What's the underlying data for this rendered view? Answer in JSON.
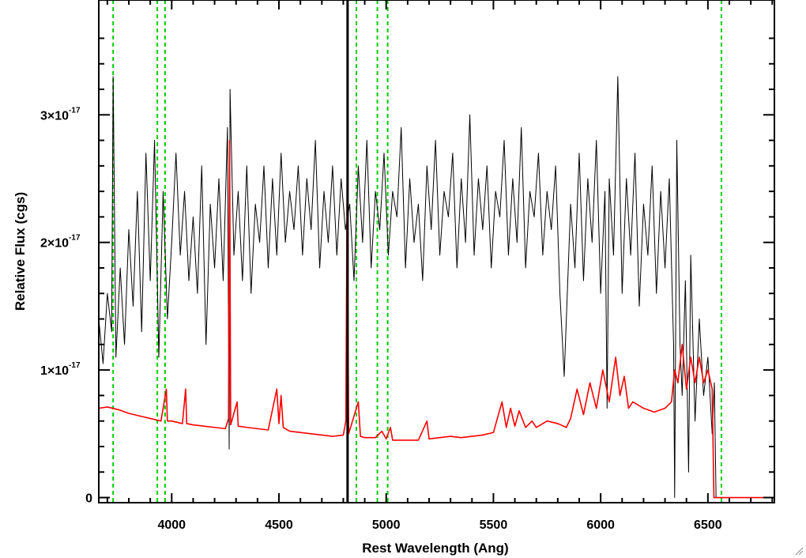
{
  "chart_data": {
    "type": "line",
    "xlabel": "Rest Wavelength (Ang)",
    "ylabel": "Relative Flux (cgs)",
    "xlim": [
      3660,
      6810
    ],
    "ylim": [
      -4e-19,
      3.9e-17
    ],
    "x_ticks": [
      {
        "value": 4000,
        "label": "4000"
      },
      {
        "value": 4500,
        "label": "4500"
      },
      {
        "value": 5000,
        "label": "5000"
      },
      {
        "value": 5500,
        "label": "5500"
      },
      {
        "value": 6000,
        "label": "6000"
      },
      {
        "value": 6500,
        "label": "6500"
      }
    ],
    "y_ticks": [
      {
        "value": 0,
        "label": "0",
        "mantissa": "",
        "exponent": ""
      },
      {
        "value": 1e-17,
        "label": "1×10",
        "mantissa": "1×10",
        "exponent": "-17"
      },
      {
        "value": 2e-17,
        "label": "2×10",
        "mantissa": "2×10",
        "exponent": "-17"
      },
      {
        "value": 3e-17,
        "label": "3×10",
        "mantissa": "3×10",
        "exponent": "-17"
      }
    ],
    "colors": {
      "spectrum": "#000000",
      "error": "#ff0000",
      "lines": "#00cc00",
      "marker": "#000000"
    },
    "vertical_lines_green": [
      3727,
      3933,
      3969,
      4861,
      4959,
      5007,
      6563
    ],
    "vertical_line_black": 4820,
    "series": [
      {
        "key": "spectrum",
        "points": [
          [
            3660,
            1.4e-17
          ],
          [
            3680,
            1.05e-17
          ],
          [
            3700,
            1.6e-17
          ],
          [
            3720,
            1.3e-17
          ],
          [
            3727,
            3.3e-17
          ],
          [
            3740,
            1.1e-17
          ],
          [
            3760,
            1.8e-17
          ],
          [
            3780,
            1.2e-17
          ],
          [
            3800,
            2.1e-17
          ],
          [
            3820,
            1.5e-17
          ],
          [
            3840,
            2.4e-17
          ],
          [
            3860,
            1.3e-17
          ],
          [
            3880,
            2.7e-17
          ],
          [
            3900,
            1.7e-17
          ],
          [
            3920,
            2.8e-17
          ],
          [
            3940,
            1.1e-17
          ],
          [
            3960,
            2.4e-17
          ],
          [
            3980,
            1.4e-17
          ],
          [
            4000,
            2e-17
          ],
          [
            4020,
            2.7e-17
          ],
          [
            4040,
            1.9e-17
          ],
          [
            4060,
            2.4e-17
          ],
          [
            4080,
            1.7e-17
          ],
          [
            4100,
            2.2e-17
          ],
          [
            4120,
            1.6e-17
          ],
          [
            4140,
            2.6e-17
          ],
          [
            4160,
            1.2e-17
          ],
          [
            4180,
            2.3e-17
          ],
          [
            4200,
            1.8e-17
          ],
          [
            4220,
            2.5e-17
          ],
          [
            4240,
            1.7e-17
          ],
          [
            4260,
            2.9e-17
          ],
          [
            4268,
            3.8e-18
          ],
          [
            4272,
            3.2e-17
          ],
          [
            4290,
            1.9e-17
          ],
          [
            4310,
            2.4e-17
          ],
          [
            4330,
            1.7e-17
          ],
          [
            4350,
            2.6e-17
          ],
          [
            4370,
            1.6e-17
          ],
          [
            4390,
            2.3e-17
          ],
          [
            4410,
            2e-17
          ],
          [
            4430,
            2.6e-17
          ],
          [
            4450,
            1.8e-17
          ],
          [
            4470,
            2.5e-17
          ],
          [
            4490,
            1.9e-17
          ],
          [
            4510,
            2.7e-17
          ],
          [
            4530,
            2e-17
          ],
          [
            4550,
            2.4e-17
          ],
          [
            4570,
            2.1e-17
          ],
          [
            4590,
            2.6e-17
          ],
          [
            4610,
            1.9e-17
          ],
          [
            4630,
            2.5e-17
          ],
          [
            4650,
            2.1e-17
          ],
          [
            4670,
            2.8e-17
          ],
          [
            4690,
            1.8e-17
          ],
          [
            4710,
            2.4e-17
          ],
          [
            4730,
            2e-17
          ],
          [
            4750,
            2.6e-17
          ],
          [
            4770,
            1.9e-17
          ],
          [
            4790,
            2.5e-17
          ],
          [
            4810,
            2.1e-17
          ],
          [
            4830,
            2.3e-17
          ],
          [
            4850,
            1.7e-17
          ],
          [
            4870,
            2.6e-17
          ],
          [
            4890,
            2e-17
          ],
          [
            4910,
            2.8e-17
          ],
          [
            4930,
            1.8e-17
          ],
          [
            4950,
            2.4e-17
          ],
          [
            4970,
            2.1e-17
          ],
          [
            4990,
            2.7e-17
          ],
          [
            5010,
            1.9e-17
          ],
          [
            5030,
            2.4e-17
          ],
          [
            5050,
            2.2e-17
          ],
          [
            5070,
            2.9e-17
          ],
          [
            5090,
            1.8e-17
          ],
          [
            5110,
            2.5e-17
          ],
          [
            5130,
            2e-17
          ],
          [
            5150,
            2.3e-17
          ],
          [
            5170,
            1.7e-17
          ],
          [
            5190,
            2.6e-17
          ],
          [
            5210,
            2.1e-17
          ],
          [
            5230,
            2.8e-17
          ],
          [
            5250,
            1.9e-17
          ],
          [
            5270,
            2.4e-17
          ],
          [
            5290,
            2.2e-17
          ],
          [
            5310,
            2.7e-17
          ],
          [
            5330,
            1.8e-17
          ],
          [
            5350,
            2.5e-17
          ],
          [
            5370,
            2e-17
          ],
          [
            5390,
            3e-17
          ],
          [
            5410,
            1.9e-17
          ],
          [
            5430,
            2.5e-17
          ],
          [
            5450,
            2.1e-17
          ],
          [
            5470,
            2.6e-17
          ],
          [
            5490,
            1.8e-17
          ],
          [
            5510,
            2.4e-17
          ],
          [
            5530,
            2.2e-17
          ],
          [
            5550,
            2.8e-17
          ],
          [
            5570,
            1.9e-17
          ],
          [
            5590,
            2.5e-17
          ],
          [
            5610,
            2e-17
          ],
          [
            5630,
            2.9e-17
          ],
          [
            5650,
            1.8e-17
          ],
          [
            5670,
            2.4e-17
          ],
          [
            5690,
            2.2e-17
          ],
          [
            5710,
            2.7e-17
          ],
          [
            5730,
            1.9e-17
          ],
          [
            5750,
            2.4e-17
          ],
          [
            5770,
            2.1e-17
          ],
          [
            5790,
            2.6e-17
          ],
          [
            5810,
            1.6e-17
          ],
          [
            5830,
            9.5e-18
          ],
          [
            5840,
            1.4e-17
          ],
          [
            5860,
            2.3e-17
          ],
          [
            5880,
            1.8e-17
          ],
          [
            5900,
            2.7e-17
          ],
          [
            5920,
            1.7e-17
          ],
          [
            5940,
            2.5e-17
          ],
          [
            5960,
            2e-17
          ],
          [
            5980,
            2.8e-17
          ],
          [
            6000,
            1.6e-17
          ],
          [
            6020,
            2.4e-17
          ],
          [
            6030,
            7e-18
          ],
          [
            6040,
            2.5e-17
          ],
          [
            6060,
            1.9e-17
          ],
          [
            6080,
            3.3e-17
          ],
          [
            6100,
            1.6e-17
          ],
          [
            6120,
            2.5e-17
          ],
          [
            6140,
            1.9e-17
          ],
          [
            6160,
            2.7e-17
          ],
          [
            6180,
            1.5e-17
          ],
          [
            6200,
            2.3e-17
          ],
          [
            6220,
            1.9e-17
          ],
          [
            6240,
            2.6e-17
          ],
          [
            6260,
            1.6e-17
          ],
          [
            6280,
            2.4e-17
          ],
          [
            6300,
            1.8e-17
          ],
          [
            6320,
            2.5e-17
          ],
          [
            6340,
            1.2e-17
          ],
          [
            6345,
            0.0
          ],
          [
            6355,
            2.8e-17
          ],
          [
            6370,
            1.2e-17
          ],
          [
            6380,
            8e-18
          ],
          [
            6395,
            1.7e-17
          ],
          [
            6410,
            2e-18
          ],
          [
            6420,
            1.9e-17
          ],
          [
            6440,
            6e-18
          ],
          [
            6460,
            1.4e-17
          ],
          [
            6480,
            8e-18
          ],
          [
            6500,
            1.1e-17
          ],
          [
            6520,
            5e-18
          ],
          [
            6530,
            9e-18
          ],
          [
            6538,
            0.0
          ]
        ]
      },
      {
        "key": "error",
        "points": [
          [
            3660,
            7e-18
          ],
          [
            3700,
            7.1e-18
          ],
          [
            3750,
            6.9e-18
          ],
          [
            3800,
            6.6e-18
          ],
          [
            3850,
            6.4e-18
          ],
          [
            3900,
            6.2e-18
          ],
          [
            3950,
            6e-18
          ],
          [
            3975,
            8.5e-18
          ],
          [
            3980,
            6e-18
          ],
          [
            4000,
            6e-18
          ],
          [
            4050,
            5.8e-18
          ],
          [
            4065,
            8.5e-18
          ],
          [
            4070,
            5.8e-18
          ],
          [
            4100,
            5.7e-18
          ],
          [
            4150,
            5.6e-18
          ],
          [
            4200,
            5.5e-18
          ],
          [
            4250,
            5.4e-18
          ],
          [
            4265,
            6.2e-18
          ],
          [
            4270,
            2.8e-17
          ],
          [
            4275,
            5.7e-18
          ],
          [
            4305,
            7.5e-18
          ],
          [
            4310,
            5.6e-18
          ],
          [
            4350,
            5.5e-18
          ],
          [
            4400,
            5.4e-18
          ],
          [
            4450,
            5.3e-18
          ],
          [
            4490,
            8.5e-18
          ],
          [
            4500,
            5.8e-18
          ],
          [
            4510,
            8e-18
          ],
          [
            4520,
            5.5e-18
          ],
          [
            4550,
            5.2e-18
          ],
          [
            4600,
            5.1e-18
          ],
          [
            4650,
            5e-18
          ],
          [
            4700,
            4.9e-18
          ],
          [
            4750,
            4.8e-18
          ],
          [
            4800,
            4.9e-18
          ],
          [
            4812,
            6e-18
          ],
          [
            4818,
            2.5e-17
          ],
          [
            4825,
            5e-18
          ],
          [
            4870,
            7.5e-18
          ],
          [
            4880,
            4.8e-18
          ],
          [
            4900,
            4.7e-18
          ],
          [
            4950,
            4.7e-18
          ],
          [
            4980,
            5.2e-18
          ],
          [
            5000,
            4.6e-18
          ],
          [
            5020,
            5.5e-18
          ],
          [
            5030,
            4.5e-18
          ],
          [
            5100,
            4.5e-18
          ],
          [
            5150,
            4.5e-18
          ],
          [
            5190,
            6e-18
          ],
          [
            5200,
            4.6e-18
          ],
          [
            5250,
            4.7e-18
          ],
          [
            5300,
            4.8e-18
          ],
          [
            5350,
            4.7e-18
          ],
          [
            5400,
            4.8e-18
          ],
          [
            5450,
            4.9e-18
          ],
          [
            5500,
            5.1e-18
          ],
          [
            5540,
            7.5e-18
          ],
          [
            5560,
            5.5e-18
          ],
          [
            5580,
            7e-18
          ],
          [
            5600,
            5.6e-18
          ],
          [
            5620,
            6.8e-18
          ],
          [
            5650,
            5.5e-18
          ],
          [
            5680,
            6e-18
          ],
          [
            5700,
            5.5e-18
          ],
          [
            5750,
            6e-18
          ],
          [
            5800,
            5.8e-18
          ],
          [
            5840,
            5.5e-18
          ],
          [
            5860,
            6.2e-18
          ],
          [
            5890,
            8.5e-18
          ],
          [
            5920,
            6.5e-18
          ],
          [
            5950,
            9e-18
          ],
          [
            5980,
            7e-18
          ],
          [
            6010,
            1e-17
          ],
          [
            6040,
            7.5e-18
          ],
          [
            6070,
            1.1e-17
          ],
          [
            6090,
            8e-18
          ],
          [
            6110,
            9.5e-18
          ],
          [
            6130,
            7e-18
          ],
          [
            6150,
            7.5e-18
          ],
          [
            6200,
            7e-18
          ],
          [
            6250,
            6.7e-18
          ],
          [
            6300,
            7e-18
          ],
          [
            6330,
            7.5e-18
          ],
          [
            6345,
            1e-17
          ],
          [
            6360,
            9e-18
          ],
          [
            6380,
            1.2e-17
          ],
          [
            6400,
            8.5e-18
          ],
          [
            6420,
            1.1e-17
          ],
          [
            6440,
            9e-18
          ],
          [
            6460,
            1.1e-17
          ],
          [
            6480,
            9e-18
          ],
          [
            6500,
            1e-17
          ],
          [
            6520,
            8.5e-18
          ],
          [
            6528,
            0.0
          ],
          [
            6810,
            0.0
          ]
        ]
      }
    ]
  }
}
